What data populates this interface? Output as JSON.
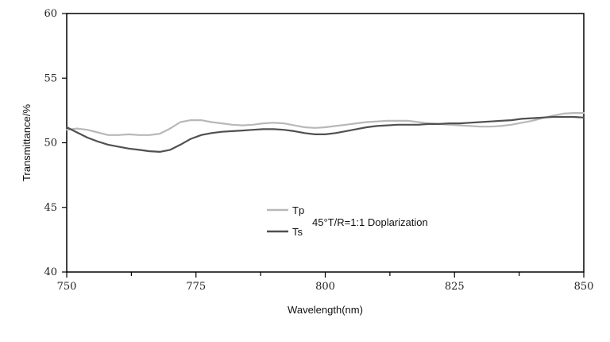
{
  "chart_data": {
    "type": "line",
    "xlabel": "Wavelength(nm)",
    "ylabel": "Transmittance/%",
    "xlim": [
      750,
      850
    ],
    "ylim": [
      40,
      60
    ],
    "x_ticks": [
      750,
      775,
      800,
      825,
      850
    ],
    "y_ticks": [
      40,
      45,
      50,
      55,
      60
    ],
    "grid": false,
    "legend_position": "center",
    "annotation": "45°T/R=1:1 Doplarization",
    "series": [
      {
        "name": "Tp",
        "color": "#b8b8b8",
        "points": [
          [
            750,
            51.0
          ],
          [
            752,
            51.1
          ],
          [
            754,
            51.0
          ],
          [
            756,
            50.8
          ],
          [
            758,
            50.6
          ],
          [
            760,
            50.6
          ],
          [
            762,
            50.65
          ],
          [
            764,
            50.6
          ],
          [
            766,
            50.6
          ],
          [
            768,
            50.7
          ],
          [
            770,
            51.1
          ],
          [
            772,
            51.6
          ],
          [
            774,
            51.75
          ],
          [
            776,
            51.75
          ],
          [
            778,
            51.6
          ],
          [
            780,
            51.5
          ],
          [
            782,
            51.4
          ],
          [
            784,
            51.35
          ],
          [
            786,
            51.4
          ],
          [
            788,
            51.5
          ],
          [
            790,
            51.55
          ],
          [
            792,
            51.5
          ],
          [
            794,
            51.35
          ],
          [
            796,
            51.2
          ],
          [
            798,
            51.15
          ],
          [
            800,
            51.2
          ],
          [
            802,
            51.3
          ],
          [
            804,
            51.4
          ],
          [
            806,
            51.5
          ],
          [
            808,
            51.6
          ],
          [
            810,
            51.65
          ],
          [
            812,
            51.7
          ],
          [
            814,
            51.7
          ],
          [
            816,
            51.7
          ],
          [
            818,
            51.6
          ],
          [
            820,
            51.5
          ],
          [
            822,
            51.45
          ],
          [
            824,
            51.4
          ],
          [
            826,
            51.35
          ],
          [
            828,
            51.3
          ],
          [
            830,
            51.25
          ],
          [
            832,
            51.25
          ],
          [
            834,
            51.3
          ],
          [
            836,
            51.4
          ],
          [
            838,
            51.55
          ],
          [
            840,
            51.7
          ],
          [
            842,
            51.9
          ],
          [
            844,
            52.1
          ],
          [
            846,
            52.25
          ],
          [
            848,
            52.3
          ],
          [
            850,
            52.3
          ]
        ]
      },
      {
        "name": "Ts",
        "color": "#505050",
        "points": [
          [
            750,
            51.2
          ],
          [
            752,
            50.8
          ],
          [
            754,
            50.4
          ],
          [
            756,
            50.1
          ],
          [
            758,
            49.85
          ],
          [
            760,
            49.7
          ],
          [
            762,
            49.55
          ],
          [
            764,
            49.45
          ],
          [
            766,
            49.35
          ],
          [
            768,
            49.3
          ],
          [
            770,
            49.45
          ],
          [
            772,
            49.85
          ],
          [
            774,
            50.3
          ],
          [
            776,
            50.6
          ],
          [
            778,
            50.75
          ],
          [
            780,
            50.85
          ],
          [
            782,
            50.9
          ],
          [
            784,
            50.95
          ],
          [
            786,
            51.0
          ],
          [
            788,
            51.05
          ],
          [
            790,
            51.05
          ],
          [
            792,
            51.0
          ],
          [
            794,
            50.9
          ],
          [
            796,
            50.75
          ],
          [
            798,
            50.65
          ],
          [
            800,
            50.65
          ],
          [
            802,
            50.75
          ],
          [
            804,
            50.9
          ],
          [
            806,
            51.05
          ],
          [
            808,
            51.2
          ],
          [
            810,
            51.3
          ],
          [
            812,
            51.35
          ],
          [
            814,
            51.4
          ],
          [
            816,
            51.4
          ],
          [
            818,
            51.4
          ],
          [
            820,
            51.45
          ],
          [
            822,
            51.45
          ],
          [
            824,
            51.5
          ],
          [
            826,
            51.5
          ],
          [
            828,
            51.55
          ],
          [
            830,
            51.6
          ],
          [
            832,
            51.65
          ],
          [
            834,
            51.7
          ],
          [
            836,
            51.75
          ],
          [
            838,
            51.85
          ],
          [
            840,
            51.9
          ],
          [
            842,
            51.95
          ],
          [
            844,
            52.0
          ],
          [
            846,
            52.0
          ],
          [
            848,
            52.0
          ],
          [
            850,
            51.95
          ]
        ]
      }
    ]
  }
}
